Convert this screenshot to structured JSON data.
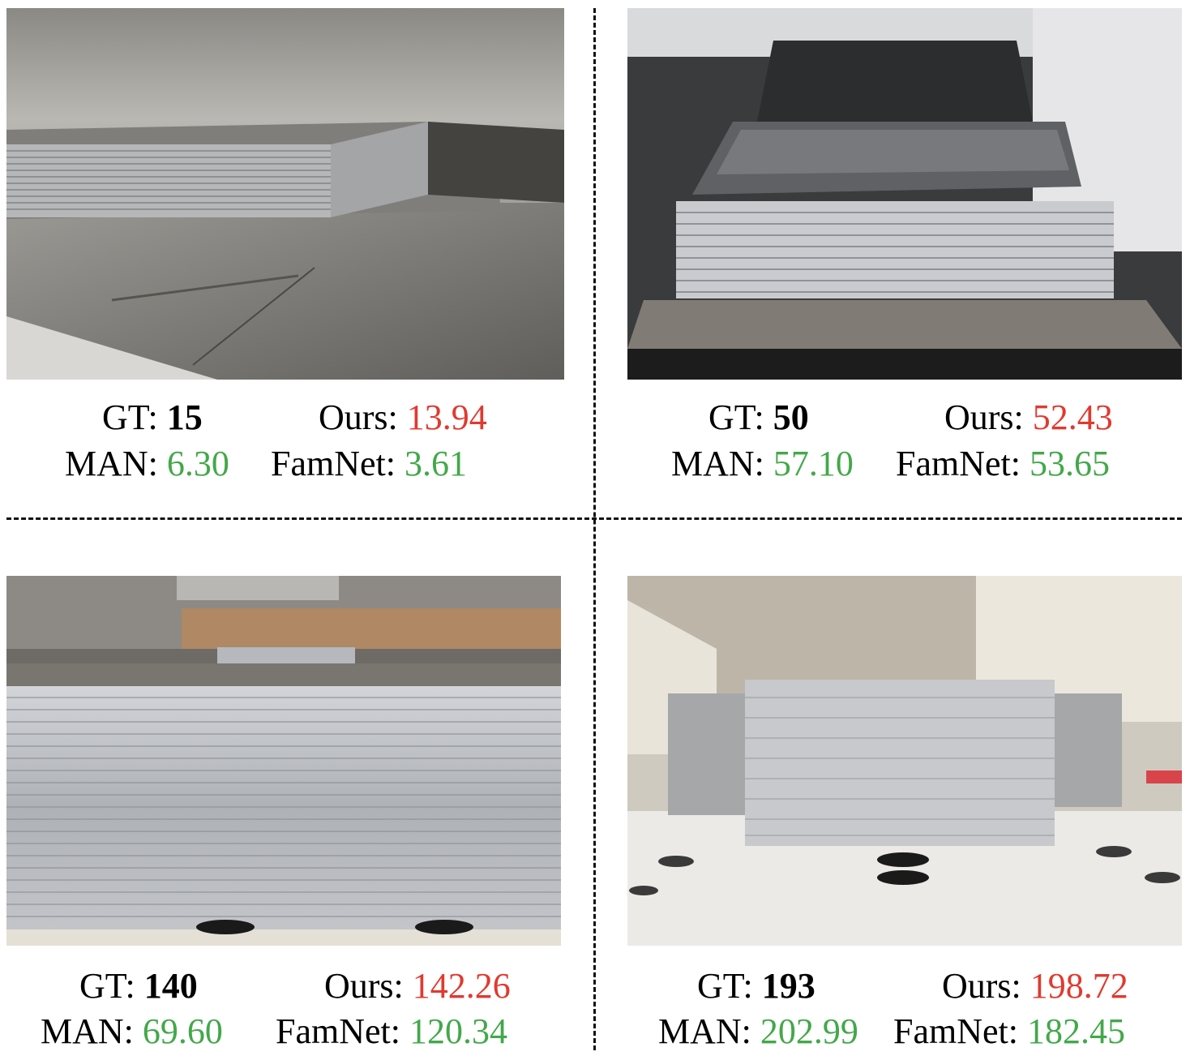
{
  "panels": [
    {
      "gt_label": "GT:",
      "gt": "15",
      "ours_label": "Ours:",
      "ours": "13.94",
      "man_label": "MAN:",
      "man": "6.30",
      "famnet_label": "FamNet:",
      "famnet": "3.61"
    },
    {
      "gt_label": "GT:",
      "gt": "50",
      "ours_label": "Ours:",
      "ours": "52.43",
      "man_label": "MAN:",
      "man": "57.10",
      "famnet_label": "FamNet:",
      "famnet": "53.65"
    },
    {
      "gt_label": "GT:",
      "gt": "140",
      "ours_label": "Ours:",
      "ours": "142.26",
      "man_label": "MAN:",
      "man": "69.60",
      "famnet_label": "FamNet:",
      "famnet": "120.34"
    },
    {
      "gt_label": "GT:",
      "gt": "193",
      "ours_label": "Ours:",
      "ours": "198.72",
      "man_label": "MAN:",
      "man": "202.99",
      "famnet_label": "FamNet:",
      "famnet": "182.45"
    }
  ],
  "colors": {
    "ours": "#e03a2f",
    "baselines": "#43a84a"
  }
}
